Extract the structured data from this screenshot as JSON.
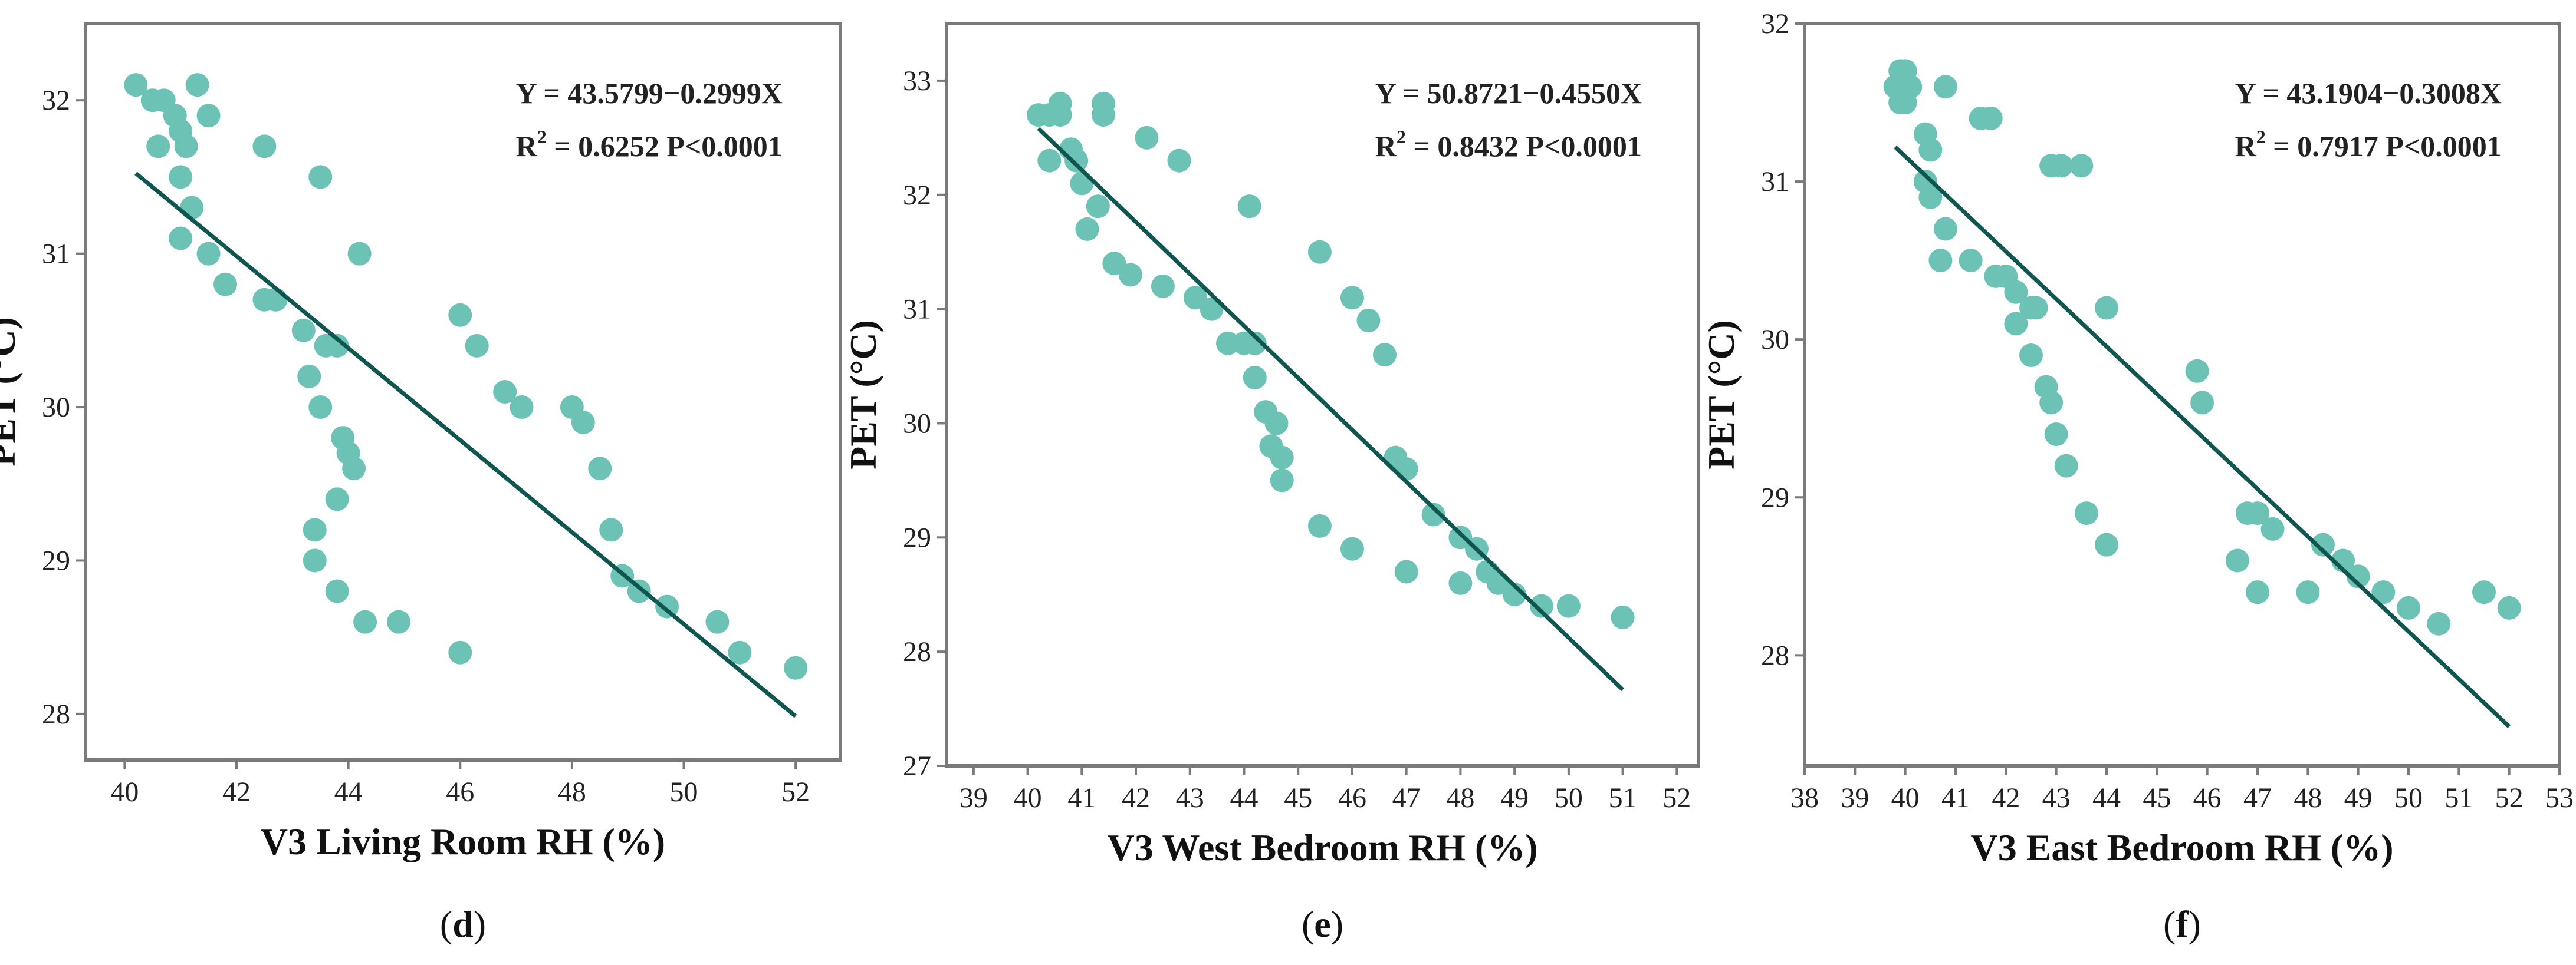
{
  "colors": {
    "point": "#6cc3b5",
    "fit_line": "#0f5650",
    "frame": "#7a7a7a",
    "text": "#222222"
  },
  "chart_data": [
    {
      "type": "scatter",
      "panel_label": "d",
      "xlabel": "V3 Living Room RH (%)",
      "ylabel": "PET (°C)",
      "xlim": [
        39.3,
        52.8
      ],
      "ylim": [
        27.7,
        32.5
      ],
      "xticks": [
        40,
        42,
        44,
        46,
        48,
        50,
        52
      ],
      "yticks": [
        28,
        29,
        30,
        31,
        32
      ],
      "grid": false,
      "equation": "Y = 43.5799−0.2999X",
      "r2_label": "R",
      "r2_sup": "2",
      "r2_stats": " = 0.6252  P<0.0001",
      "fit": {
        "intercept": 43.5799,
        "slope": -0.2999,
        "x_range": [
          40.2,
          52
        ]
      },
      "points": [
        [
          40.2,
          32.1
        ],
        [
          40.5,
          32.0
        ],
        [
          40.7,
          32.0
        ],
        [
          40.9,
          31.9
        ],
        [
          41.0,
          31.8
        ],
        [
          41.1,
          31.7
        ],
        [
          40.6,
          31.7
        ],
        [
          41.3,
          32.1
        ],
        [
          41.5,
          31.9
        ],
        [
          41.0,
          31.5
        ],
        [
          41.2,
          31.3
        ],
        [
          41.0,
          31.1
        ],
        [
          41.5,
          31.0
        ],
        [
          41.8,
          30.8
        ],
        [
          42.5,
          31.7
        ],
        [
          42.5,
          30.7
        ],
        [
          42.7,
          30.7
        ],
        [
          43.2,
          30.5
        ],
        [
          43.3,
          30.2
        ],
        [
          43.5,
          30.0
        ],
        [
          43.6,
          30.4
        ],
        [
          43.8,
          30.4
        ],
        [
          43.5,
          31.5
        ],
        [
          44.2,
          31.0
        ],
        [
          43.9,
          29.8
        ],
        [
          44.0,
          29.7
        ],
        [
          44.1,
          29.6
        ],
        [
          43.8,
          29.4
        ],
        [
          43.4,
          29.2
        ],
        [
          43.4,
          29.0
        ],
        [
          43.8,
          28.8
        ],
        [
          44.3,
          28.6
        ],
        [
          44.9,
          28.6
        ],
        [
          46.0,
          28.4
        ],
        [
          46.0,
          30.6
        ],
        [
          46.3,
          30.4
        ],
        [
          46.8,
          30.1
        ],
        [
          47.1,
          30.0
        ],
        [
          48.0,
          30.0
        ],
        [
          48.2,
          29.9
        ],
        [
          48.5,
          29.6
        ],
        [
          48.7,
          29.2
        ],
        [
          48.9,
          28.9
        ],
        [
          49.2,
          28.8
        ],
        [
          49.7,
          28.7
        ],
        [
          50.6,
          28.6
        ],
        [
          51.0,
          28.4
        ],
        [
          52.0,
          28.3
        ]
      ]
    },
    {
      "type": "scatter",
      "panel_label": "e",
      "xlabel": "V3 West Bedroom RH (%)",
      "ylabel": "PET (°C)",
      "xlim": [
        38.5,
        52.4
      ],
      "ylim": [
        27.0,
        33.5
      ],
      "xticks": [
        39,
        40,
        41,
        42,
        43,
        44,
        45,
        46,
        47,
        48,
        49,
        50,
        51,
        52
      ],
      "yticks": [
        27,
        28,
        29,
        30,
        31,
        32,
        33
      ],
      "grid": false,
      "equation": "Y = 50.8721−0.4550X",
      "r2_label": "R",
      "r2_sup": "2",
      "r2_stats": " = 0.8432  P<0.0001",
      "fit": {
        "intercept": 50.8721,
        "slope": -0.455,
        "x_range": [
          40.2,
          51
        ]
      },
      "points": [
        [
          40.2,
          32.7
        ],
        [
          40.4,
          32.7
        ],
        [
          40.6,
          32.7
        ],
        [
          40.6,
          32.8
        ],
        [
          41.4,
          32.8
        ],
        [
          41.4,
          32.7
        ],
        [
          40.8,
          32.4
        ],
        [
          40.4,
          32.3
        ],
        [
          40.9,
          32.3
        ],
        [
          41.0,
          32.1
        ],
        [
          41.3,
          31.9
        ],
        [
          41.1,
          31.7
        ],
        [
          42.2,
          32.5
        ],
        [
          42.8,
          32.3
        ],
        [
          41.6,
          31.4
        ],
        [
          41.9,
          31.3
        ],
        [
          42.5,
          31.2
        ],
        [
          43.1,
          31.1
        ],
        [
          43.4,
          31.0
        ],
        [
          43.7,
          30.7
        ],
        [
          44.0,
          30.7
        ],
        [
          44.2,
          30.7
        ],
        [
          44.1,
          31.9
        ],
        [
          44.2,
          30.4
        ],
        [
          44.4,
          30.1
        ],
        [
          44.6,
          30.0
        ],
        [
          44.5,
          29.8
        ],
        [
          44.7,
          29.7
        ],
        [
          44.7,
          29.5
        ],
        [
          45.4,
          29.1
        ],
        [
          45.4,
          31.5
        ],
        [
          46.0,
          31.1
        ],
        [
          46.3,
          30.9
        ],
        [
          46.6,
          30.6
        ],
        [
          46.8,
          29.7
        ],
        [
          47.0,
          29.6
        ],
        [
          47.5,
          29.2
        ],
        [
          48.0,
          29.0
        ],
        [
          48.3,
          28.9
        ],
        [
          48.5,
          28.7
        ],
        [
          48.7,
          28.6
        ],
        [
          49.0,
          28.5
        ],
        [
          49.5,
          28.4
        ],
        [
          50.0,
          28.4
        ],
        [
          46.0,
          28.9
        ],
        [
          47.0,
          28.7
        ],
        [
          48.0,
          28.6
        ],
        [
          51.0,
          28.3
        ]
      ]
    },
    {
      "type": "scatter",
      "panel_label": "f",
      "xlabel": "V3 East Bedroom RH (%)",
      "ylabel": "PET (°C)",
      "xlim": [
        38,
        53
      ],
      "ylim": [
        27.3,
        32.0
      ],
      "xticks": [
        38,
        39,
        40,
        41,
        42,
        43,
        44,
        45,
        46,
        47,
        48,
        49,
        50,
        51,
        52,
        53
      ],
      "yticks": [
        28,
        29,
        30,
        31,
        32
      ],
      "grid": false,
      "equation": "Y = 43.1904−0.3008X",
      "r2_label": "R",
      "r2_sup": "2",
      "r2_stats": " = 0.7917  P<0.0001",
      "fit": {
        "intercept": 43.1904,
        "slope": -0.3008,
        "x_range": [
          39.8,
          52
        ]
      },
      "points": [
        [
          39.9,
          31.7
        ],
        [
          40.0,
          31.7
        ],
        [
          39.8,
          31.6
        ],
        [
          40.0,
          31.6
        ],
        [
          39.9,
          31.5
        ],
        [
          40.0,
          31.5
        ],
        [
          40.1,
          31.6
        ],
        [
          40.8,
          31.6
        ],
        [
          41.5,
          31.4
        ],
        [
          41.7,
          31.4
        ],
        [
          40.4,
          31.3
        ],
        [
          40.5,
          31.2
        ],
        [
          40.4,
          31.0
        ],
        [
          40.5,
          30.9
        ],
        [
          40.8,
          30.7
        ],
        [
          40.7,
          30.5
        ],
        [
          41.3,
          30.5
        ],
        [
          41.8,
          30.4
        ],
        [
          42.0,
          30.4
        ],
        [
          42.2,
          30.3
        ],
        [
          42.5,
          30.2
        ],
        [
          42.6,
          30.2
        ],
        [
          42.2,
          30.1
        ],
        [
          42.5,
          29.9
        ],
        [
          42.8,
          29.7
        ],
        [
          42.9,
          29.6
        ],
        [
          43.0,
          29.4
        ],
        [
          43.2,
          29.2
        ],
        [
          43.6,
          28.9
        ],
        [
          44.0,
          28.7
        ],
        [
          42.9,
          31.1
        ],
        [
          43.1,
          31.1
        ],
        [
          43.5,
          31.1
        ],
        [
          44.0,
          30.2
        ],
        [
          45.8,
          29.8
        ],
        [
          45.9,
          29.6
        ],
        [
          46.6,
          28.6
        ],
        [
          46.8,
          28.9
        ],
        [
          47.0,
          28.9
        ],
        [
          47.3,
          28.8
        ],
        [
          47.0,
          28.4
        ],
        [
          48.0,
          28.4
        ],
        [
          48.3,
          28.7
        ],
        [
          48.7,
          28.6
        ],
        [
          49.0,
          28.5
        ],
        [
          49.5,
          28.4
        ],
        [
          50.0,
          28.3
        ],
        [
          50.6,
          28.2
        ],
        [
          51.5,
          28.4
        ],
        [
          52.0,
          28.3
        ]
      ]
    }
  ]
}
